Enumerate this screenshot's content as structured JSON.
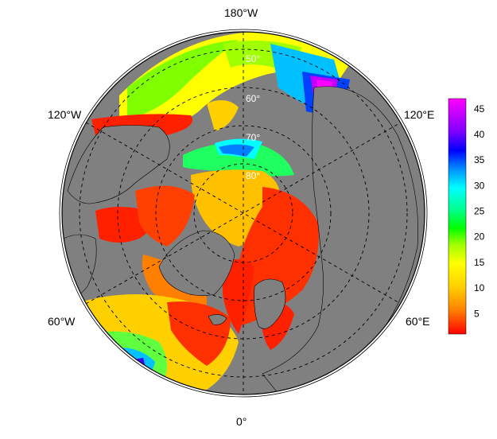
{
  "map": {
    "projection": "north-polar-stereographic",
    "lon_labels": {
      "top": "180°W",
      "upper_left": "120°W",
      "upper_right": "120°E",
      "lower_left": "60°W",
      "lower_right": "60°E",
      "bottom": "0°"
    },
    "lat_labels": [
      "50°",
      "60°",
      "70°",
      "80°"
    ],
    "land_color": "#808080",
    "border_color": "#000000"
  },
  "colorbar": {
    "min": 1,
    "max": 47,
    "ticks": [
      "5",
      "10",
      "15",
      "20",
      "25",
      "30",
      "35",
      "40",
      "45"
    ],
    "tick_values": [
      5,
      10,
      15,
      20,
      25,
      30,
      35,
      40,
      45
    ],
    "colors": [
      "#ff0000",
      "#ff7f00",
      "#ffd000",
      "#ffff00",
      "#a0ff00",
      "#00ff00",
      "#00ff90",
      "#00ffff",
      "#0090ff",
      "#0000ff",
      "#7f00ff",
      "#c000ff",
      "#ff00ff"
    ]
  }
}
